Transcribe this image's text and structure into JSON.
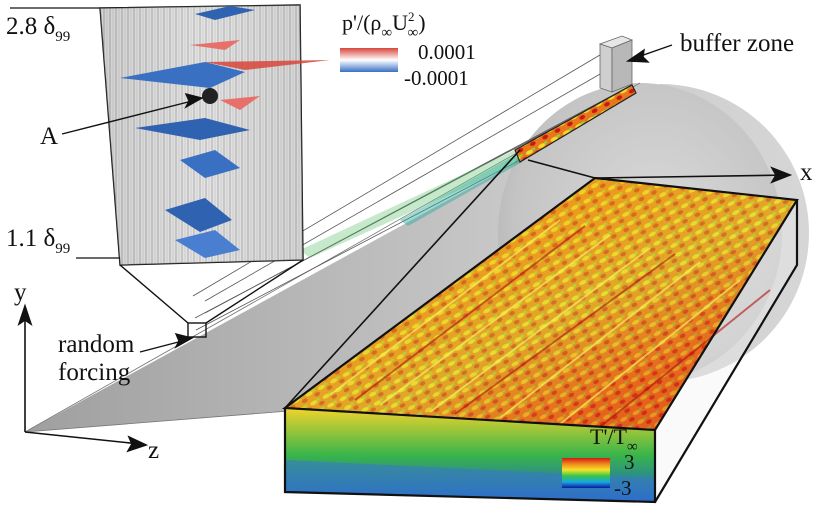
{
  "annotations": {
    "delta_top_num": "2.8",
    "delta_bottom_num": "1.1",
    "delta_sym": "δ",
    "delta_sub": "99",
    "point_a": "A",
    "buffer_zone": "buffer zone",
    "random_forcing_line1": "random",
    "random_forcing_line2": "forcing"
  },
  "axes": {
    "x": "x",
    "y": "y",
    "z": "z"
  },
  "pressure_legend": {
    "title_main": "p'/(ρ",
    "title_sub1": "∞",
    "title_u": "U",
    "title_sub2": "∞",
    "title_sup": "2",
    "title_end": ")",
    "max_label": "0.0001",
    "min_label": "-0.0001",
    "colors": [
      "#3a6fc4",
      "#ffffff",
      "#d8453a"
    ]
  },
  "temperature_legend": {
    "title_main": "T'/T",
    "title_sub": "∞",
    "max_label": "3",
    "min_label": "-3",
    "colors": [
      "#0a1aa0",
      "#1aa7e0",
      "#35c44a",
      "#f2e52a",
      "#f08a1c",
      "#d41818"
    ]
  }
}
